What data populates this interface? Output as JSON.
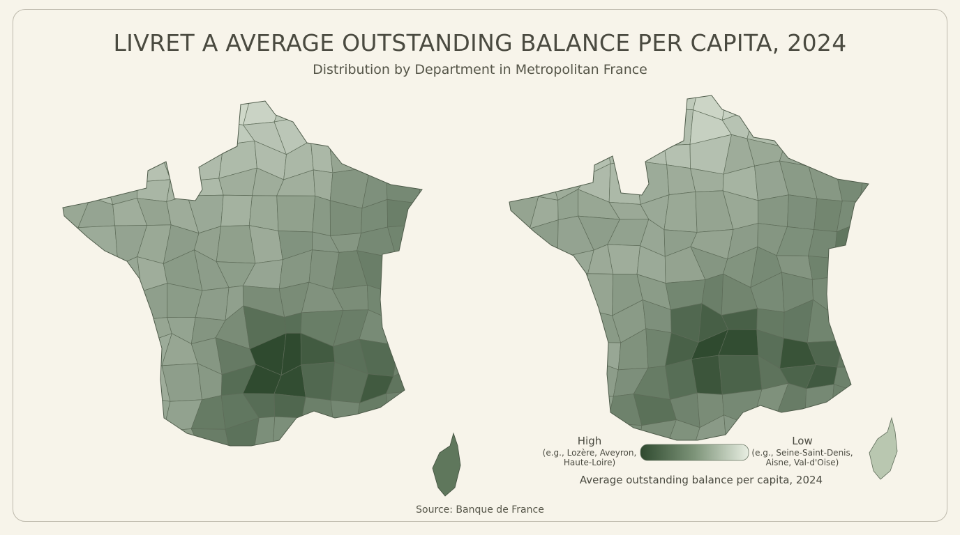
{
  "header": {
    "title": "LIVRET A AVERAGE OUTSTANDING BALANCE PER CAPITA, 2024",
    "subtitle": "Distribution by Department in Metropolitan France"
  },
  "legend": {
    "high": "High",
    "high_note": "(e.g., Lozère, Aveyron, Haute-Loire)",
    "low": "Low",
    "low_note": "(e.g., Seine-Saint-Denis, Aisne, Val-d'Oise)",
    "title": "Average outstanding balance per capita, 2024"
  },
  "footer": {
    "source": "Source: Banque de France"
  }
}
